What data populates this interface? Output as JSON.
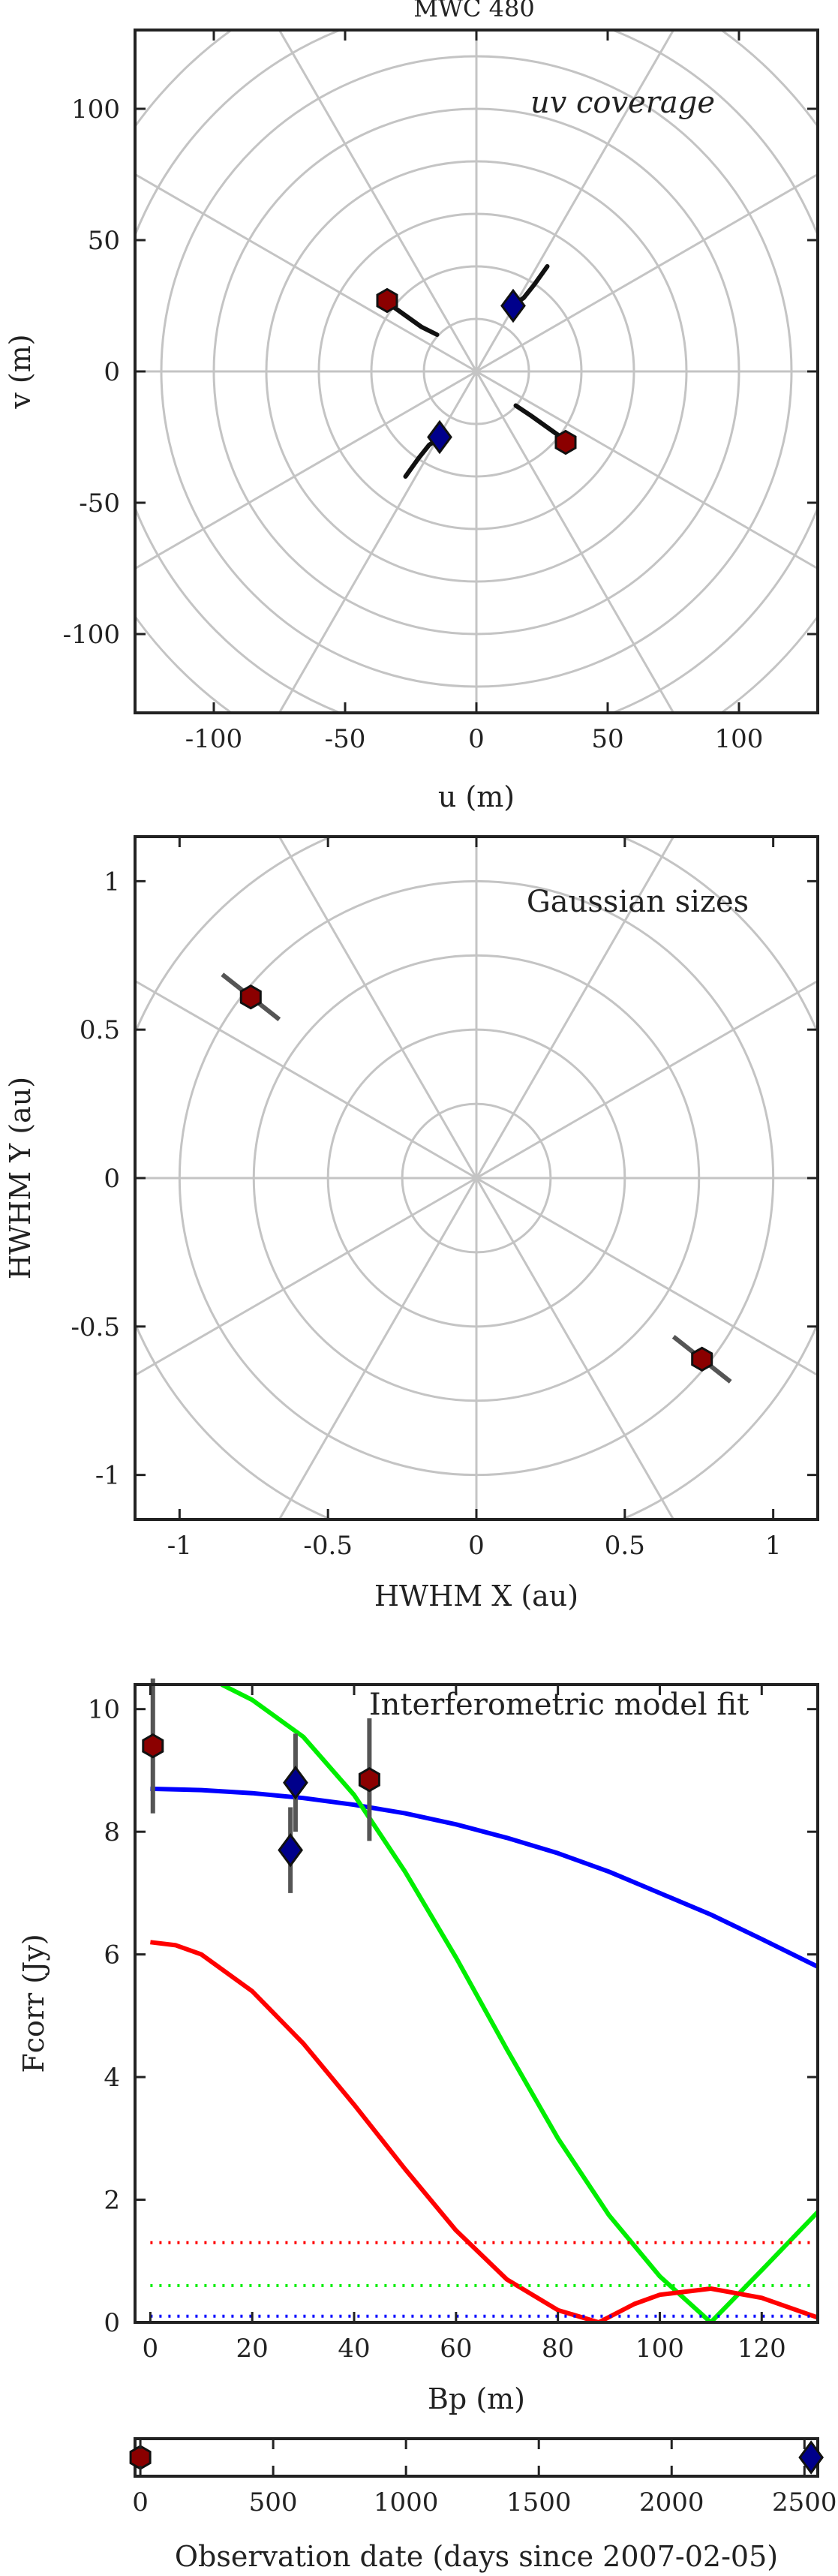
{
  "chart_data": [
    {
      "type": "scatter",
      "title": "MWC 480",
      "annotation": "uv coverage",
      "xlabel": "u (m)",
      "ylabel": "v (m)",
      "xlim": [
        -130,
        130
      ],
      "ylim": [
        -130,
        130
      ],
      "xticks": [
        "-100",
        "-50",
        "0",
        "50",
        "100"
      ],
      "yticks": [
        "-100",
        "-50",
        "0",
        "50",
        "100"
      ],
      "grid": "polar",
      "series": [
        {
          "marker": "hexagon",
          "color": "#8b0000",
          "points": [
            [
              -34,
              27
            ],
            [
              34,
              -27
            ]
          ]
        },
        {
          "marker": "diamond",
          "color": "#00008b",
          "points": [
            [
              14,
              25
            ],
            [
              -14,
              -25
            ]
          ]
        }
      ],
      "tracks": [
        [
          [
            -35,
            27
          ],
          [
            -28,
            22
          ],
          [
            -21,
            17
          ],
          [
            -15,
            14
          ]
        ],
        [
          [
            35,
            -27
          ],
          [
            28,
            -22
          ],
          [
            21,
            -17
          ],
          [
            15,
            -13
          ]
        ],
        [
          [
            12,
            24
          ],
          [
            18,
            28
          ],
          [
            22,
            33
          ],
          [
            27,
            40
          ]
        ],
        [
          [
            -12,
            -24
          ],
          [
            -18,
            -28
          ],
          [
            -22,
            -33
          ],
          [
            -27,
            -40
          ]
        ]
      ]
    },
    {
      "type": "scatter",
      "annotation": "Gaussian sizes",
      "xlabel": "HWHM X (au)",
      "ylabel": "HWHM Y (au)",
      "xlim": [
        -1.15,
        1.15
      ],
      "ylim": [
        -1.15,
        1.15
      ],
      "xticks": [
        "-1",
        "-0.5",
        "0",
        "0.5",
        "1"
      ],
      "yticks": [
        "-1",
        "-0.5",
        "0",
        "0.5",
        "1"
      ],
      "grid": "polar",
      "points": [
        [
          -0.76,
          0.61
        ],
        [
          0.76,
          -0.61
        ]
      ],
      "marker": "hexagon",
      "color": "#8b0000"
    },
    {
      "type": "line",
      "annotation": "Interferometric model fit",
      "xlabel": "Bp (m)",
      "ylabel": "Fcorr (Jy)",
      "xlim": [
        -3,
        131
      ],
      "ylim": [
        0,
        10.4
      ],
      "xticks": [
        "0",
        "20",
        "40",
        "60",
        "80",
        "100",
        "120"
      ],
      "yticks": [
        "0",
        "2",
        "4",
        "6",
        "8",
        "10"
      ],
      "series": [
        {
          "color": "#0000ff",
          "style": "solid",
          "x": [
            0,
            10,
            20,
            30,
            40,
            50,
            60,
            70,
            80,
            90,
            100,
            110,
            120,
            131
          ],
          "y": [
            8.7,
            8.68,
            8.63,
            8.55,
            8.44,
            8.3,
            8.12,
            7.9,
            7.65,
            7.35,
            7.0,
            6.65,
            6.25,
            5.8
          ]
        },
        {
          "color": "#00ee00",
          "style": "solid",
          "x": [
            14,
            20,
            30,
            40,
            50,
            60,
            70,
            80,
            90,
            100,
            110,
            120,
            131
          ],
          "y": [
            10.4,
            10.15,
            9.55,
            8.6,
            7.35,
            5.95,
            4.45,
            3.0,
            1.75,
            0.75,
            0.0,
            0.85,
            1.8
          ]
        },
        {
          "color": "#ff0000",
          "style": "solid",
          "x": [
            0,
            5,
            10,
            20,
            30,
            40,
            50,
            60,
            70,
            80,
            88,
            95,
            100,
            110,
            120,
            131
          ],
          "y": [
            6.2,
            6.15,
            6.0,
            5.4,
            4.55,
            3.55,
            2.5,
            1.5,
            0.7,
            0.2,
            0.0,
            0.3,
            0.45,
            0.55,
            0.4,
            0.08
          ]
        },
        {
          "color": "#ff0000",
          "style": "dotted",
          "x": [
            0,
            131
          ],
          "y": [
            1.3,
            1.3
          ]
        },
        {
          "color": "#00ee00",
          "style": "dotted",
          "x": [
            0,
            131
          ],
          "y": [
            0.6,
            0.6
          ]
        },
        {
          "color": "#0000ff",
          "style": "dotted",
          "x": [
            0,
            131
          ],
          "y": [
            0.1,
            0.1
          ]
        }
      ],
      "points": [
        {
          "marker": "hexagon",
          "color": "#8b0000",
          "x": 0.5,
          "y": 9.4,
          "err": 1.1
        },
        {
          "marker": "hexagon",
          "color": "#8b0000",
          "x": 43,
          "y": 8.85,
          "err": 1.0
        },
        {
          "marker": "diamond",
          "color": "#00008b",
          "x": 28.5,
          "y": 8.8,
          "err": 0.8
        },
        {
          "marker": "diamond",
          "color": "#00008b",
          "x": 27.5,
          "y": 7.7,
          "err": 0.7
        }
      ]
    },
    {
      "type": "scatter",
      "xlabel": "Observation date (days since 2007-02-05)",
      "xlim": [
        -20,
        2550
      ],
      "xticks": [
        "0",
        "500",
        "1000",
        "1500",
        "2000",
        "2500"
      ],
      "points": [
        {
          "marker": "hexagon",
          "color": "#8b0000",
          "x": 0
        },
        {
          "marker": "diamond",
          "color": "#00008b",
          "x": 2525
        }
      ]
    }
  ]
}
